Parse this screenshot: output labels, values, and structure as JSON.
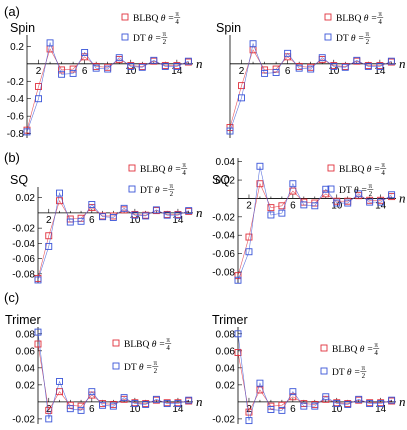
{
  "figure": {
    "panel_labels": [
      "(a)",
      "(b)",
      "(c)"
    ]
  },
  "colors": {
    "blbq": "#e0303c",
    "dt": "#3a55d8",
    "axis": "#000000"
  },
  "chart_data": [
    {
      "id": "a-left",
      "type": "line",
      "title": "Spin",
      "xlabel": "n",
      "xlim": [
        1,
        15.4
      ],
      "ylim": [
        -0.85,
        0.33
      ],
      "xticks": [
        2,
        6,
        10,
        14
      ],
      "yticks": [
        0.2,
        -0.2,
        -0.4,
        -0.6,
        -0.8
      ],
      "ytick_labels": [
        "0.2",
        "-0.2",
        "-0.4",
        "-0.6",
        "-0.8"
      ],
      "legend": {
        "position": "top-right",
        "entries": [
          "BLBQ θ = π/4",
          "DT θ = π/2"
        ]
      },
      "series": [
        {
          "name": "BLBQ θ = π/4",
          "color": "#e0303c",
          "x": [
            1,
            2,
            3,
            4,
            5,
            6,
            7,
            8,
            9,
            10,
            11,
            12,
            13,
            14,
            15
          ],
          "values": [
            -0.76,
            -0.26,
            0.17,
            -0.07,
            -0.06,
            0.08,
            -0.03,
            -0.04,
            0.05,
            -0.02,
            -0.03,
            0.03,
            -0.02,
            -0.02,
            0.02
          ]
        },
        {
          "name": "DT θ = π/2",
          "color": "#3a55d8",
          "x": [
            1,
            2,
            3,
            4,
            5,
            6,
            7,
            8,
            9,
            10,
            11,
            12,
            13,
            14,
            15
          ],
          "values": [
            -0.78,
            -0.4,
            0.24,
            -0.12,
            -0.11,
            0.13,
            -0.05,
            -0.06,
            0.07,
            -0.03,
            -0.04,
            0.04,
            -0.03,
            -0.03,
            0.03
          ]
        }
      ]
    },
    {
      "id": "a-right",
      "type": "line",
      "title": "Spin",
      "xlabel": "n",
      "xlim": [
        1,
        15.4
      ],
      "ylim": [
        -0.85,
        0.33
      ],
      "xticks": [
        2,
        6,
        10,
        14
      ],
      "yticks": [],
      "ytick_labels": [],
      "legend": {
        "position": "top-right",
        "entries": [
          "BLBQ θ = π/4",
          "DT θ = π/2"
        ]
      },
      "series": [
        {
          "name": "BLBQ θ = π/4",
          "color": "#e0303c",
          "x": [
            1,
            2,
            3,
            4,
            5,
            6,
            7,
            8,
            9,
            10,
            11,
            12,
            13,
            14,
            15
          ],
          "values": [
            -0.73,
            -0.25,
            0.16,
            -0.07,
            -0.06,
            0.08,
            -0.03,
            -0.04,
            0.05,
            -0.02,
            -0.03,
            0.03,
            -0.02,
            -0.02,
            0.02
          ]
        },
        {
          "name": "DT θ = π/2",
          "color": "#3a55d8",
          "x": [
            1,
            2,
            3,
            4,
            5,
            6,
            7,
            8,
            9,
            10,
            11,
            12,
            13,
            14,
            15
          ],
          "values": [
            -0.77,
            -0.39,
            0.23,
            -0.11,
            -0.1,
            0.12,
            -0.05,
            -0.06,
            0.07,
            -0.03,
            -0.04,
            0.04,
            -0.03,
            -0.03,
            0.03
          ]
        }
      ]
    },
    {
      "id": "b-left",
      "type": "line",
      "title": "SQ",
      "xlabel": "n",
      "xlim": [
        1,
        15.4
      ],
      "ylim": [
        -0.092,
        0.034
      ],
      "xticks": [
        2,
        6,
        10,
        14
      ],
      "yticks": [
        0.02,
        -0.02,
        -0.04,
        -0.06,
        -0.08
      ],
      "ytick_labels": [
        "0.02",
        "-0.02",
        "-0.04",
        "-0.06",
        "-0.08"
      ],
      "legend": {
        "position": "top-right",
        "entries": [
          "BLBQ θ = π/4",
          "DT θ = π/2"
        ]
      },
      "series": [
        {
          "name": "BLBQ θ = π/4",
          "color": "#e0303c",
          "x": [
            1,
            2,
            3,
            4,
            5,
            6,
            7,
            8,
            9,
            10,
            11,
            12,
            13,
            14,
            15
          ],
          "values": [
            -0.086,
            -0.03,
            0.016,
            -0.008,
            -0.007,
            0.007,
            -0.004,
            -0.004,
            0.004,
            -0.002,
            -0.003,
            0.003,
            -0.002,
            -0.002,
            0.002
          ]
        },
        {
          "name": "DT θ = π/2",
          "color": "#3a55d8",
          "x": [
            1,
            2,
            3,
            4,
            5,
            6,
            7,
            8,
            9,
            10,
            11,
            12,
            13,
            14,
            15
          ],
          "values": [
            -0.088,
            -0.044,
            0.026,
            -0.012,
            -0.011,
            0.011,
            -0.005,
            -0.006,
            0.006,
            -0.003,
            -0.004,
            0.004,
            -0.003,
            -0.003,
            0.003
          ]
        }
      ]
    },
    {
      "id": "b-right",
      "type": "line",
      "title": "SQ",
      "xlabel": "n",
      "xlim": [
        1,
        15.4
      ],
      "ylim": [
        -0.092,
        0.044
      ],
      "xticks": [
        2,
        6,
        10,
        14
      ],
      "yticks": [
        0.04,
        0.02,
        -0.02,
        -0.04,
        -0.06,
        -0.08
      ],
      "ytick_labels": [
        "0.04",
        "0.02",
        "-0.02",
        "-0.04",
        "-0.06",
        "-0.08"
      ],
      "legend": {
        "position": "top-right",
        "entries": [
          "BLBQ θ = π/4",
          "DT θ = π/2"
        ]
      },
      "series": [
        {
          "name": "BLBQ θ = π/4",
          "color": "#e0303c",
          "x": [
            1,
            2,
            3,
            4,
            5,
            6,
            7,
            8,
            9,
            10,
            11,
            12,
            13,
            14,
            15
          ],
          "values": [
            -0.084,
            -0.042,
            0.016,
            -0.01,
            -0.008,
            0.008,
            -0.004,
            -0.005,
            0.005,
            -0.003,
            -0.003,
            0.003,
            -0.002,
            -0.002,
            0.002
          ]
        },
        {
          "name": "DT θ = π/2",
          "color": "#3a55d8",
          "x": [
            1,
            2,
            3,
            4,
            5,
            6,
            7,
            8,
            9,
            10,
            11,
            12,
            13,
            14,
            15
          ],
          "values": [
            -0.089,
            -0.058,
            0.035,
            -0.018,
            -0.016,
            0.016,
            -0.007,
            -0.008,
            0.01,
            -0.005,
            -0.005,
            0.005,
            -0.004,
            -0.004,
            0.004
          ]
        }
      ]
    },
    {
      "id": "c-left",
      "type": "line",
      "title": "Trimer",
      "xlabel": "n",
      "xlim": [
        1,
        15.4
      ],
      "ylim": [
        -0.026,
        0.088
      ],
      "xticks": [
        2,
        6,
        10,
        14
      ],
      "yticks": [
        0.08,
        0.06,
        0.04,
        0.02,
        -0.02
      ],
      "ytick_labels": [
        "0.08",
        "0.06",
        "0.04",
        "0.02",
        "-0.02"
      ],
      "legend": {
        "position": "right",
        "entries": [
          "BLBQ θ = π/4",
          "DT θ = π/2"
        ]
      },
      "series": [
        {
          "name": "BLBQ θ = π/4",
          "color": "#e0303c",
          "x": [
            1,
            2,
            3,
            4,
            5,
            6,
            7,
            8,
            9,
            10,
            11,
            12,
            13,
            14,
            15
          ],
          "values": [
            0.068,
            -0.01,
            0.012,
            -0.004,
            -0.005,
            0.008,
            -0.002,
            -0.003,
            0.003,
            -0.001,
            -0.002,
            0.002,
            -0.001,
            -0.001,
            0.001
          ]
        },
        {
          "name": "DT θ = π/2",
          "color": "#3a55d8",
          "x": [
            1,
            2,
            3,
            4,
            5,
            6,
            7,
            8,
            9,
            10,
            11,
            12,
            13,
            14,
            15
          ],
          "values": [
            0.082,
            -0.02,
            0.024,
            -0.008,
            -0.01,
            0.012,
            -0.004,
            -0.005,
            0.005,
            -0.002,
            -0.003,
            0.003,
            -0.002,
            -0.002,
            0.002
          ]
        }
      ]
    },
    {
      "id": "c-right",
      "type": "line",
      "title": "Trimer",
      "xlabel": "n",
      "xlim": [
        1,
        15.4
      ],
      "ylim": [
        -0.026,
        0.088
      ],
      "xticks": [
        2,
        6,
        10,
        14
      ],
      "yticks": [
        0.08,
        0.06,
        0.04,
        0.02,
        -0.02
      ],
      "ytick_labels": [
        "0.08",
        "0.06",
        "0.04",
        "0.02",
        "-0.02"
      ],
      "legend": {
        "position": "right",
        "entries": [
          "BLBQ θ = π/4",
          "DT θ = π/2"
        ]
      },
      "series": [
        {
          "name": "BLBQ θ = π/4",
          "color": "#e0303c",
          "x": [
            1,
            2,
            3,
            4,
            5,
            6,
            7,
            8,
            9,
            10,
            11,
            12,
            13,
            14,
            15
          ],
          "values": [
            0.058,
            -0.012,
            0.014,
            -0.005,
            -0.004,
            0.006,
            -0.002,
            -0.003,
            0.003,
            -0.001,
            -0.002,
            0.002,
            -0.001,
            -0.001,
            0.001
          ]
        },
        {
          "name": "DT θ = π/2",
          "color": "#3a55d8",
          "x": [
            1,
            2,
            3,
            4,
            5,
            6,
            7,
            8,
            9,
            10,
            11,
            12,
            13,
            14,
            15
          ],
          "values": [
            0.08,
            -0.022,
            0.022,
            -0.009,
            -0.01,
            0.012,
            -0.005,
            -0.005,
            0.006,
            -0.002,
            -0.003,
            0.003,
            -0.002,
            -0.002,
            0.002
          ]
        }
      ]
    }
  ]
}
